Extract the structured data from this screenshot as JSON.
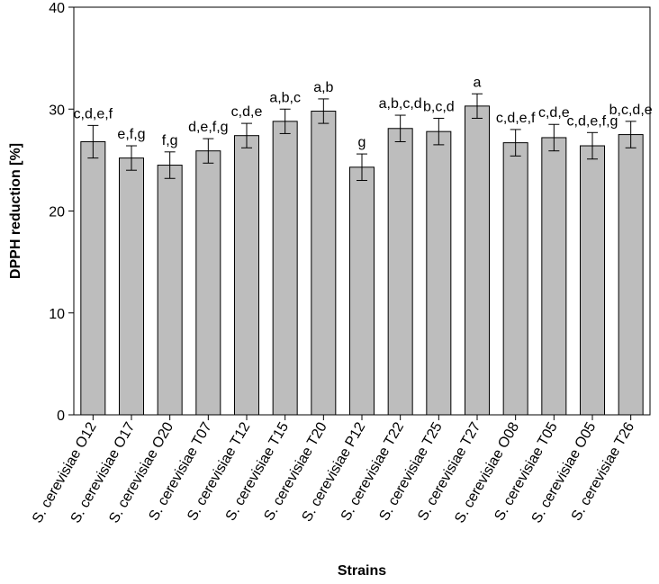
{
  "chart_data": {
    "type": "bar",
    "xlabel": "Strains",
    "ylabel": "DPPH reduction [%]",
    "ylim": [
      0,
      40
    ],
    "yticks": [
      0,
      10,
      20,
      30,
      40
    ],
    "grid": false,
    "bar_color": "#bdbdbd",
    "categories": [
      "S. cerevisiae O12",
      "S. cerevisiae O17",
      "S. cerevisiae O20",
      "S. cerevisiae T07",
      "S. cerevisiae T12",
      "S. cerevisiae T15",
      "S. cerevisiae T20",
      "S. cerevisiae P12",
      "S. cerevisiae T22",
      "S. cerevisiae T25",
      "S. cerevisiae T27",
      "S. cerevisiae O08",
      "S. cerevisiae T05",
      "S. cerevisiae O05",
      "S. cerevisiae T26"
    ],
    "values": [
      26.8,
      25.2,
      24.5,
      25.9,
      27.4,
      28.8,
      29.8,
      24.3,
      28.1,
      27.8,
      30.3,
      26.7,
      27.2,
      26.4,
      27.5
    ],
    "errors": [
      1.6,
      1.2,
      1.3,
      1.2,
      1.2,
      1.2,
      1.2,
      1.3,
      1.3,
      1.3,
      1.2,
      1.3,
      1.3,
      1.3,
      1.3
    ],
    "significance": [
      "c,d,e,f",
      "e,f,g",
      "f,g",
      "d,e,f,g",
      "c,d,e",
      "a,b,c",
      "a,b",
      "g",
      "a,b,c,d",
      "b,c,d",
      "a",
      "c,d,e,f",
      "c,d,e",
      "c,d,e,f,g",
      "b,c,d,e"
    ]
  }
}
